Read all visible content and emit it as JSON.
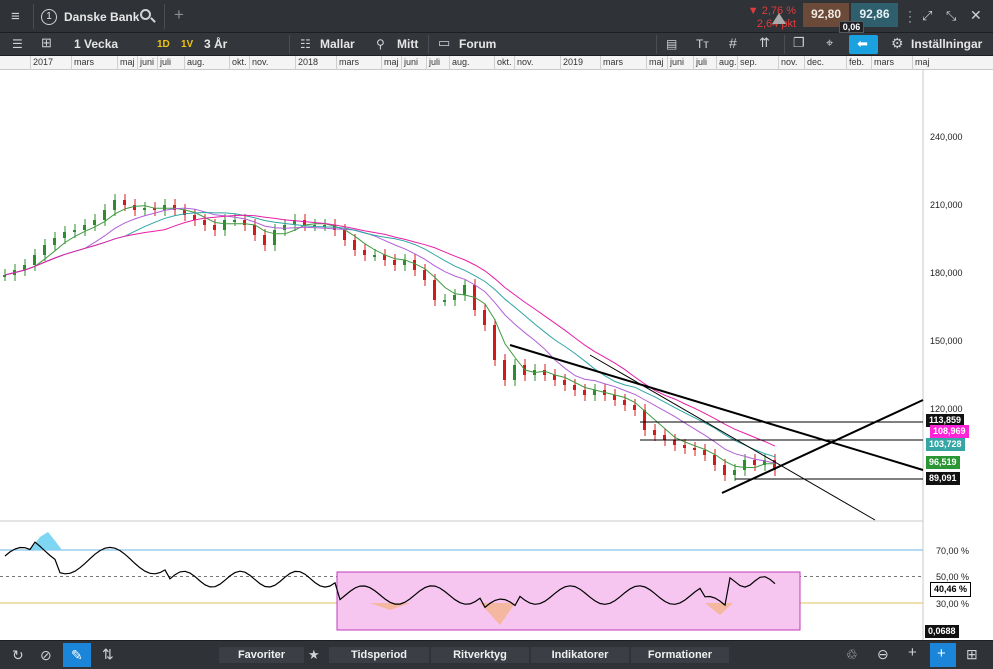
{
  "header": {
    "instrument_number": "1",
    "instrument_name": "Danske Bank",
    "add_label": "+",
    "change_pct": "▼ 2,76 %",
    "change_pts": "2,64 pkt",
    "bid": "92,80",
    "ask": "92,86",
    "spread": "0,06"
  },
  "toolbar": {
    "period": "1 Vecka",
    "btn_1d": "1D",
    "btn_1v": "1V",
    "range": "3 År",
    "templates": "Mallar",
    "mine": "Mitt",
    "forum": "Forum",
    "settings": "Inställningar"
  },
  "date_axis": [
    "2017",
    "mars",
    "maj",
    "juni",
    "juli",
    "aug.",
    "okt.",
    "nov.",
    "2018",
    "mars",
    "maj",
    "juni",
    "juli",
    "aug.",
    "okt.",
    "nov.",
    "2019",
    "mars",
    "maj",
    "juni",
    "juli",
    "aug.",
    "sep.",
    "nov.",
    "dec.",
    "feb.",
    "mars",
    "maj"
  ],
  "price_axis": [
    "240,000",
    "210,000",
    "180,000",
    "150,000",
    "120,000"
  ],
  "price_tags": {
    "t1": "113,859",
    "t2": "108,969",
    "t3": "103,728",
    "t4": "96,519",
    "t5": "89,091"
  },
  "rsi_axis": [
    "70,00 %",
    "50,00 %",
    "30,00 %"
  ],
  "rsi_tag": "40,46 %",
  "rsi_value": "0,0688",
  "bottom": {
    "favorites": "Favoriter",
    "period": "Tidsperiod",
    "drawing_tools": "Ritverktyg",
    "indicators": "Indikatorer",
    "formations": "Formationer"
  },
  "colors": {
    "up": "#2e8b2e",
    "down": "#d11a1a",
    "ma_green": "#3f9a3f",
    "ma_violet": "#b25fd6",
    "ma_teal": "#2fa5a5",
    "ma_pink": "#e81ea8"
  }
}
